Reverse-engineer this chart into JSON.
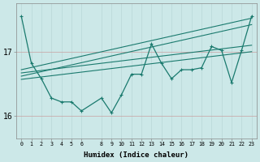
{
  "xlabel": "Humidex (Indice chaleur)",
  "bg_color": "#cce8e8",
  "line_color": "#1a7a6e",
  "x_ticks": [
    0,
    1,
    2,
    3,
    4,
    5,
    6,
    8,
    9,
    10,
    11,
    12,
    13,
    14,
    15,
    16,
    17,
    18,
    19,
    20,
    21,
    22,
    23
  ],
  "ylim": [
    15.65,
    17.75
  ],
  "yticks": [
    16,
    17
  ],
  "trend_lines": [
    {
      "x0": 0,
      "y0": 16.72,
      "x1": 23,
      "y1": 17.52
    },
    {
      "x0": 0,
      "y0": 16.62,
      "x1": 23,
      "y1": 17.42
    },
    {
      "x0": 0,
      "y0": 16.67,
      "x1": 23,
      "y1": 17.1
    },
    {
      "x0": 0,
      "y0": 16.57,
      "x1": 23,
      "y1": 17.0
    }
  ],
  "main_series_x": [
    0,
    1,
    2,
    3,
    4,
    5,
    6,
    8,
    9,
    10,
    11,
    12,
    13,
    14,
    15,
    16,
    17,
    18,
    19,
    20,
    21,
    22,
    23
  ],
  "main_series_y": [
    17.55,
    16.82,
    16.58,
    16.28,
    16.22,
    16.22,
    16.08,
    16.28,
    16.05,
    16.33,
    16.65,
    16.65,
    17.12,
    16.82,
    16.58,
    16.72,
    16.72,
    16.75,
    17.08,
    17.02,
    16.52,
    17.02,
    17.55
  ]
}
